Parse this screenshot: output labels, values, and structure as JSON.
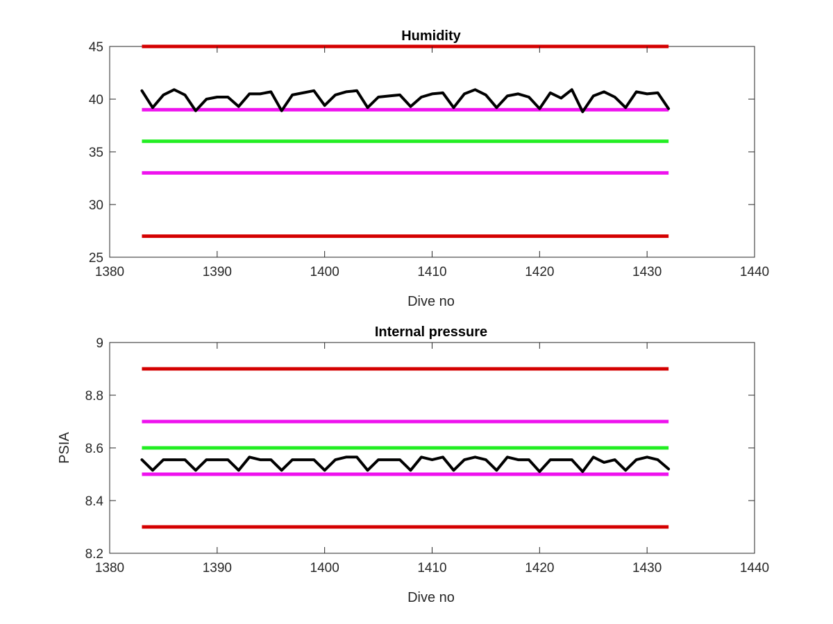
{
  "chart_data": [
    {
      "type": "line",
      "title": "Humidity",
      "xlabel": "Dive no",
      "ylabel": "",
      "xlim": [
        1380,
        1440
      ],
      "ylim": [
        25,
        45
      ],
      "xticks": [
        1380,
        1390,
        1400,
        1410,
        1420,
        1430,
        1440
      ],
      "yticks": [
        25,
        30,
        35,
        40,
        45
      ],
      "grid": false,
      "reference_lines": [
        {
          "y": 45,
          "x": [
            1383,
            1432
          ],
          "color": "#d40000"
        },
        {
          "y": 39,
          "x": [
            1383,
            1432
          ],
          "color": "#ee11ee"
        },
        {
          "y": 36,
          "x": [
            1383,
            1432
          ],
          "color": "#22ee22"
        },
        {
          "y": 33,
          "x": [
            1383,
            1432
          ],
          "color": "#ee11ee"
        },
        {
          "y": 27,
          "x": [
            1383,
            1432
          ],
          "color": "#d40000"
        }
      ],
      "series": [
        {
          "color": "#000000",
          "x": [
            1383,
            1384,
            1385,
            1386,
            1387,
            1388,
            1389,
            1390,
            1391,
            1392,
            1393,
            1394,
            1395,
            1396,
            1397,
            1398,
            1399,
            1400,
            1401,
            1402,
            1403,
            1404,
            1405,
            1406,
            1407,
            1408,
            1409,
            1410,
            1411,
            1412,
            1413,
            1414,
            1415,
            1416,
            1417,
            1418,
            1419,
            1420,
            1421,
            1422,
            1423,
            1424,
            1425,
            1426,
            1427,
            1428,
            1429,
            1430,
            1431,
            1432
          ],
          "values": [
            40.8,
            39.2,
            40.4,
            40.9,
            40.4,
            38.9,
            40.0,
            40.2,
            40.2,
            39.3,
            40.5,
            40.5,
            40.7,
            38.9,
            40.4,
            40.6,
            40.8,
            39.4,
            40.4,
            40.7,
            40.8,
            39.2,
            40.2,
            40.3,
            40.4,
            39.3,
            40.2,
            40.5,
            40.6,
            39.2,
            40.5,
            40.9,
            40.4,
            39.2,
            40.3,
            40.5,
            40.2,
            39.1,
            40.6,
            40.1,
            40.9,
            38.8,
            40.3,
            40.7,
            40.2,
            39.2,
            40.7,
            40.5,
            40.6,
            39.1
          ]
        }
      ]
    },
    {
      "type": "line",
      "title": "Internal pressure",
      "xlabel": "Dive no",
      "ylabel": "PSIA",
      "xlim": [
        1380,
        1440
      ],
      "ylim": [
        8.2,
        9.0
      ],
      "xticks": [
        1380,
        1390,
        1400,
        1410,
        1420,
        1430,
        1440
      ],
      "yticks": [
        8.2,
        8.4,
        8.6,
        8.8,
        9
      ],
      "ytick_labels": [
        "8.2",
        "8.4",
        "8.6",
        "8.8",
        "9"
      ],
      "grid": false,
      "reference_lines": [
        {
          "y": 8.9,
          "x": [
            1383,
            1432
          ],
          "color": "#d40000"
        },
        {
          "y": 8.7,
          "x": [
            1383,
            1432
          ],
          "color": "#ee11ee"
        },
        {
          "y": 8.6,
          "x": [
            1383,
            1432
          ],
          "color": "#22ee22"
        },
        {
          "y": 8.5,
          "x": [
            1383,
            1432
          ],
          "color": "#ee11ee"
        },
        {
          "y": 8.3,
          "x": [
            1383,
            1432
          ],
          "color": "#d40000"
        }
      ],
      "series": [
        {
          "color": "#000000",
          "x": [
            1383,
            1384,
            1385,
            1386,
            1387,
            1388,
            1389,
            1390,
            1391,
            1392,
            1393,
            1394,
            1395,
            1396,
            1397,
            1398,
            1399,
            1400,
            1401,
            1402,
            1403,
            1404,
            1405,
            1406,
            1407,
            1408,
            1409,
            1410,
            1411,
            1412,
            1413,
            1414,
            1415,
            1416,
            1417,
            1418,
            1419,
            1420,
            1421,
            1422,
            1423,
            1424,
            1425,
            1426,
            1427,
            1428,
            1429,
            1430,
            1431,
            1432
          ],
          "values": [
            8.555,
            8.515,
            8.555,
            8.555,
            8.555,
            8.515,
            8.555,
            8.555,
            8.555,
            8.515,
            8.565,
            8.555,
            8.555,
            8.515,
            8.555,
            8.555,
            8.555,
            8.515,
            8.555,
            8.565,
            8.565,
            8.515,
            8.555,
            8.555,
            8.555,
            8.515,
            8.565,
            8.555,
            8.565,
            8.515,
            8.555,
            8.565,
            8.555,
            8.515,
            8.565,
            8.555,
            8.555,
            8.51,
            8.555,
            8.555,
            8.555,
            8.51,
            8.565,
            8.545,
            8.555,
            8.515,
            8.555,
            8.565,
            8.555,
            8.52
          ]
        }
      ]
    }
  ]
}
